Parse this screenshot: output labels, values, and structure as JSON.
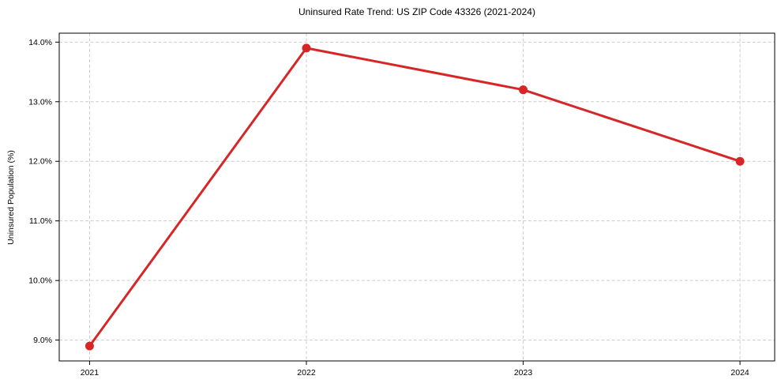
{
  "chart_data": {
    "type": "line",
    "title": "Uninsured Rate Trend: US ZIP Code 43326 (2021-2024)",
    "xlabel": "",
    "ylabel": "Uninsured Population (%)",
    "x": [
      2021,
      2022,
      2023,
      2024
    ],
    "x_tick_labels": [
      "2021",
      "2022",
      "2023",
      "2024"
    ],
    "series": [
      {
        "name": "Uninsured rate",
        "values": [
          8.9,
          13.9,
          13.2,
          12.0
        ]
      }
    ],
    "y_ticks": [
      9.0,
      10.0,
      11.0,
      12.0,
      13.0,
      14.0
    ],
    "y_tick_labels": [
      "9.0%",
      "10.0%",
      "11.0%",
      "12.0%",
      "13.0%",
      "14.0%"
    ],
    "xlim": [
      2020.86,
      2024.16
    ],
    "ylim": [
      8.65,
      14.15
    ],
    "grid": true,
    "legend": "none",
    "colors": {
      "line": "#d62728",
      "marker": "#d62728",
      "grid": "#cccccc",
      "spine": "#000000",
      "text": "#000000",
      "background": "#ffffff"
    }
  }
}
